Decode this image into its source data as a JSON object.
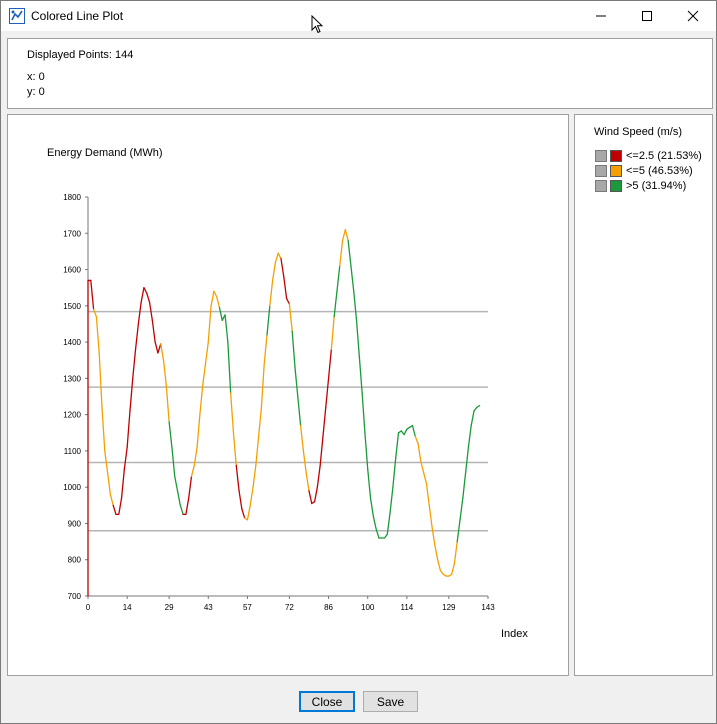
{
  "window": {
    "title": "Colored Line Plot",
    "controls": [
      "minimize-icon",
      "maximize-icon",
      "close-icon"
    ]
  },
  "info": {
    "displayed_points": "Displayed Points: 144",
    "x": "x: 0",
    "y": "y: 0"
  },
  "legend": {
    "title": "Wind Speed (m/s)",
    "items": [
      {
        "label": "<=2.5 (21.53%)",
        "color": "#c00000"
      },
      {
        "label": "<=5 (46.53%)",
        "color": "#f5a000"
      },
      {
        "label": ">5 (31.94%)",
        "color": "#1a9a3a"
      }
    ]
  },
  "buttons": {
    "close": "Close",
    "save": "Save"
  },
  "chart_data": {
    "type": "line",
    "ylabel": "Energy Demand (MWh)",
    "xlabel": "Index",
    "xlim": [
      0,
      143
    ],
    "ylim": [
      700,
      1800
    ],
    "x_ticks": [
      0,
      14,
      29,
      43,
      57,
      72,
      86,
      100,
      114,
      129,
      143
    ],
    "y_ticks": [
      700,
      800,
      900,
      1000,
      1100,
      1200,
      1300,
      1400,
      1500,
      1600,
      1700,
      1800
    ],
    "reference_lines": [
      880,
      1068,
      1276,
      1484
    ],
    "points": [
      [
        0,
        700,
        "r"
      ],
      [
        0,
        1570,
        "r"
      ],
      [
        1,
        1570,
        "r"
      ],
      [
        2,
        1490,
        "r"
      ],
      [
        3,
        1470,
        "o"
      ],
      [
        4,
        1370,
        "o"
      ],
      [
        5,
        1220,
        "o"
      ],
      [
        6,
        1100,
        "o"
      ],
      [
        7,
        1040,
        "o"
      ],
      [
        8,
        980,
        "o"
      ],
      [
        9,
        950,
        "o"
      ],
      [
        10,
        925,
        "r"
      ],
      [
        11,
        925,
        "r"
      ],
      [
        12,
        970,
        "r"
      ],
      [
        13,
        1050,
        "r"
      ],
      [
        14,
        1110,
        "r"
      ],
      [
        15,
        1210,
        "r"
      ],
      [
        16,
        1300,
        "r"
      ],
      [
        17,
        1380,
        "r"
      ],
      [
        18,
        1450,
        "r"
      ],
      [
        19,
        1510,
        "r"
      ],
      [
        20,
        1550,
        "r"
      ],
      [
        21,
        1535,
        "r"
      ],
      [
        22,
        1510,
        "r"
      ],
      [
        23,
        1460,
        "r"
      ],
      [
        24,
        1400,
        "r"
      ],
      [
        25,
        1370,
        "r"
      ],
      [
        26,
        1395,
        "r"
      ],
      [
        27,
        1350,
        "o"
      ],
      [
        28,
        1280,
        "o"
      ],
      [
        29,
        1180,
        "o"
      ],
      [
        30,
        1110,
        "g"
      ],
      [
        31,
        1030,
        "g"
      ],
      [
        32,
        990,
        "g"
      ],
      [
        33,
        950,
        "g"
      ],
      [
        34,
        925,
        "g"
      ],
      [
        35,
        925,
        "r"
      ],
      [
        36,
        970,
        "r"
      ],
      [
        37,
        1030,
        "r"
      ],
      [
        38,
        1060,
        "o"
      ],
      [
        39,
        1110,
        "o"
      ],
      [
        40,
        1200,
        "o"
      ],
      [
        41,
        1280,
        "o"
      ],
      [
        42,
        1340,
        "o"
      ],
      [
        43,
        1400,
        "o"
      ],
      [
        44,
        1500,
        "o"
      ],
      [
        45,
        1540,
        "o"
      ],
      [
        46,
        1525,
        "o"
      ],
      [
        47,
        1495,
        "o"
      ],
      [
        48,
        1460,
        "g"
      ],
      [
        49,
        1475,
        "g"
      ],
      [
        50,
        1400,
        "g"
      ],
      [
        51,
        1260,
        "g"
      ],
      [
        52,
        1150,
        "o"
      ],
      [
        53,
        1060,
        "o"
      ],
      [
        54,
        990,
        "r"
      ],
      [
        55,
        940,
        "r"
      ],
      [
        56,
        915,
        "r"
      ],
      [
        57,
        910,
        "o"
      ],
      [
        58,
        950,
        "o"
      ],
      [
        59,
        1000,
        "o"
      ],
      [
        60,
        1060,
        "o"
      ],
      [
        61,
        1140,
        "o"
      ],
      [
        62,
        1220,
        "o"
      ],
      [
        63,
        1340,
        "o"
      ],
      [
        64,
        1420,
        "o"
      ],
      [
        65,
        1500,
        "g"
      ],
      [
        66,
        1570,
        "o"
      ],
      [
        67,
        1620,
        "o"
      ],
      [
        68,
        1645,
        "o"
      ],
      [
        69,
        1630,
        "o"
      ],
      [
        70,
        1580,
        "r"
      ],
      [
        71,
        1520,
        "r"
      ],
      [
        72,
        1505,
        "r"
      ],
      [
        73,
        1430,
        "o"
      ],
      [
        74,
        1330,
        "g"
      ],
      [
        75,
        1250,
        "g"
      ],
      [
        76,
        1170,
        "g"
      ],
      [
        77,
        1100,
        "o"
      ],
      [
        78,
        1040,
        "o"
      ],
      [
        79,
        990,
        "o"
      ],
      [
        80,
        955,
        "r"
      ],
      [
        81,
        960,
        "r"
      ],
      [
        82,
        1000,
        "r"
      ],
      [
        83,
        1060,
        "r"
      ],
      [
        84,
        1140,
        "r"
      ],
      [
        85,
        1220,
        "r"
      ],
      [
        86,
        1300,
        "r"
      ],
      [
        87,
        1380,
        "r"
      ],
      [
        88,
        1470,
        "o"
      ],
      [
        89,
        1540,
        "g"
      ],
      [
        90,
        1610,
        "g"
      ],
      [
        91,
        1680,
        "o"
      ],
      [
        92,
        1710,
        "o"
      ],
      [
        93,
        1680,
        "o"
      ],
      [
        94,
        1610,
        "g"
      ],
      [
        95,
        1540,
        "g"
      ],
      [
        96,
        1460,
        "g"
      ],
      [
        97,
        1360,
        "g"
      ],
      [
        98,
        1260,
        "g"
      ],
      [
        99,
        1150,
        "g"
      ],
      [
        100,
        1050,
        "g"
      ],
      [
        101,
        970,
        "g"
      ],
      [
        102,
        920,
        "g"
      ],
      [
        103,
        885,
        "g"
      ],
      [
        104,
        860,
        "g"
      ],
      [
        105,
        860,
        "g"
      ],
      [
        106,
        860,
        "g"
      ],
      [
        107,
        870,
        "g"
      ],
      [
        108,
        930,
        "g"
      ],
      [
        109,
        1000,
        "g"
      ],
      [
        110,
        1080,
        "g"
      ],
      [
        111,
        1150,
        "g"
      ],
      [
        112,
        1155,
        "g"
      ],
      [
        113,
        1145,
        "g"
      ],
      [
        114,
        1160,
        "g"
      ],
      [
        115,
        1165,
        "g"
      ],
      [
        116,
        1170,
        "g"
      ],
      [
        117,
        1140,
        "g"
      ],
      [
        118,
        1120,
        "o"
      ],
      [
        119,
        1070,
        "o"
      ],
      [
        120,
        1040,
        "o"
      ],
      [
        121,
        1010,
        "o"
      ],
      [
        122,
        950,
        "o"
      ],
      [
        123,
        890,
        "o"
      ],
      [
        124,
        840,
        "o"
      ],
      [
        125,
        800,
        "o"
      ],
      [
        126,
        770,
        "o"
      ],
      [
        127,
        760,
        "o"
      ],
      [
        128,
        755,
        "o"
      ],
      [
        129,
        755,
        "o"
      ],
      [
        130,
        760,
        "o"
      ],
      [
        131,
        790,
        "o"
      ],
      [
        132,
        850,
        "o"
      ],
      [
        133,
        910,
        "g"
      ],
      [
        134,
        970,
        "g"
      ],
      [
        135,
        1040,
        "g"
      ],
      [
        136,
        1110,
        "g"
      ],
      [
        137,
        1170,
        "g"
      ],
      [
        138,
        1210,
        "g"
      ],
      [
        139,
        1220,
        "g"
      ],
      [
        140,
        1225,
        "g"
      ]
    ]
  }
}
